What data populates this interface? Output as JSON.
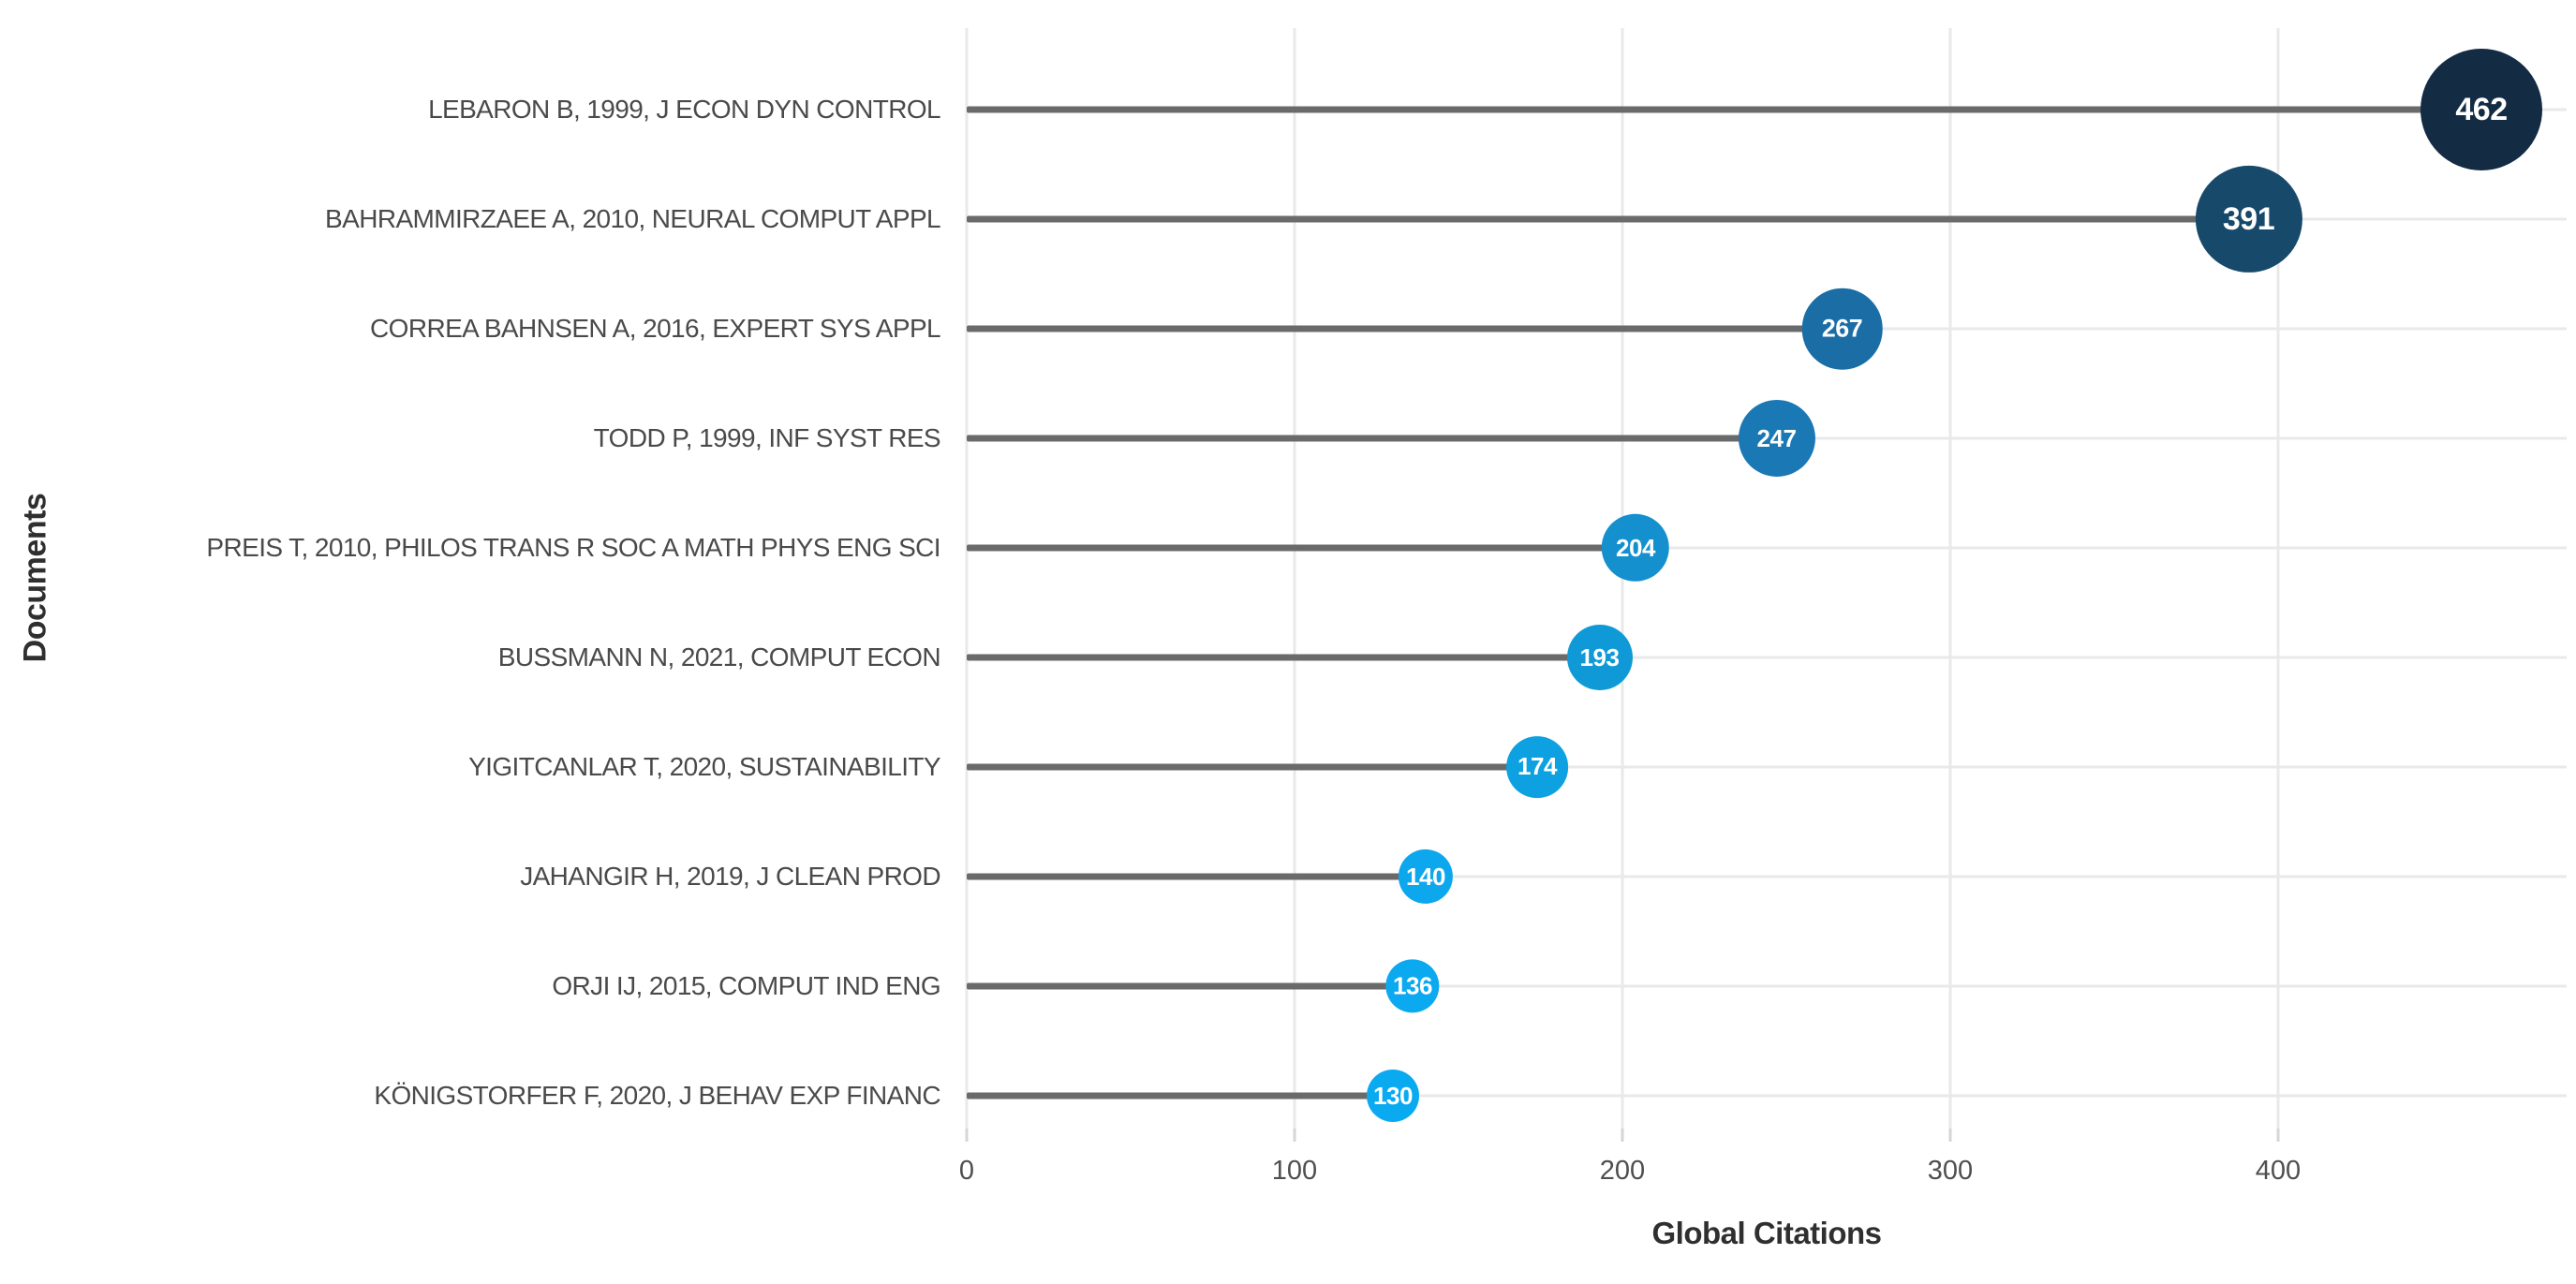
{
  "figure": {
    "background": "#ffffff"
  },
  "chart_data": {
    "type": "lollipop",
    "title": "",
    "xlabel": "Global Citations",
    "ylabel": "Documents",
    "categories": [
      "LEBARON B, 1999, J ECON DYN CONTROL",
      "BAHRAMMIRZAEE A, 2010, NEURAL COMPUT APPL",
      "CORREA BAHNSEN A, 2016, EXPERT SYS APPL",
      "TODD P, 1999, INF SYST RES",
      "PREIS T, 2010, PHILOS TRANS R SOC A MATH PHYS ENG SCI",
      "BUSSMANN N, 2021, COMPUT ECON",
      "YIGITCANLAR T, 2020, SUSTAINABILITY",
      "JAHANGIR H, 2019, J CLEAN PROD",
      "ORJI IJ, 2015, COMPUT IND ENG",
      "KÖNIGSTORFER F, 2020, J BEHAV EXP FINANC"
    ],
    "values": [
      462,
      391,
      267,
      247,
      204,
      193,
      174,
      140,
      136,
      130
    ],
    "point_colors": [
      "#132B43",
      "#17496B",
      "#1B6EA5",
      "#1A78B4",
      "#1490CE",
      "#0F9AD7",
      "#0EA1E2",
      "#0CA7EC",
      "#0BA9EF",
      "#0AAAF1"
    ],
    "x_ticks": [
      0,
      100,
      200,
      300,
      400
    ],
    "xlim": [
      0,
      488
    ],
    "grid": "light gray horizontal line per row and vertical line per major tick",
    "legend": "none",
    "colors": {
      "stem": "#6a6a6a",
      "gridline": "#e9e9e9",
      "doc_label": "#4a4a4a",
      "tick_label": "#4f4f4f",
      "axis_title": "#2f2f2f",
      "bubble_text": "#ffffff"
    }
  }
}
